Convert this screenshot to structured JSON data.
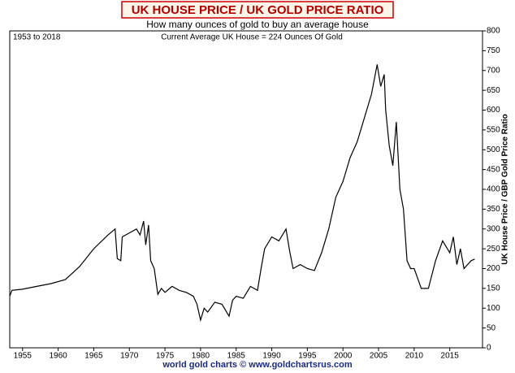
{
  "chart_data": {
    "type": "line",
    "title": "UK HOUSE PRICE / UK GOLD PRICE RATIO",
    "subtitle": "How many ounces of gold to buy an average house",
    "annotations": [
      "1953 to 2018",
      "Current Average UK House = 224 Ounces Of Gold"
    ],
    "y_label": "UK House Price / GBP Gold Price Ratio",
    "source": "world gold charts © www.goldchartsrus.com",
    "color": "#000000",
    "x": [
      1953.2,
      1953.5,
      1955,
      1957,
      1959,
      1961,
      1963,
      1965,
      1967,
      1968.0,
      1968.3,
      1968.8,
      1969,
      1970,
      1971,
      1971.5,
      1972,
      1972.3,
      1972.7,
      1973,
      1973.5,
      1974,
      1974.5,
      1975,
      1976,
      1977,
      1978,
      1979,
      1979.5,
      1980,
      1980.5,
      1981,
      1982,
      1983,
      1984,
      1984.5,
      1985,
      1986,
      1987,
      1988,
      1988.5,
      1989,
      1990,
      1991,
      1992,
      1992.5,
      1993,
      1994,
      1995,
      1996,
      1997,
      1998,
      1999,
      2000,
      2001,
      2002,
      2003,
      2004,
      2004.8,
      2005.3,
      2005.8,
      2006,
      2006.5,
      2007,
      2007.5,
      2008,
      2008.5,
      2009,
      2009.5,
      2010,
      2011,
      2012,
      2013,
      2014,
      2015,
      2015.5,
      2016,
      2016.5,
      2017,
      2017.5,
      2018,
      2018.5
    ],
    "values": [
      130,
      145,
      148,
      155,
      162,
      172,
      205,
      250,
      285,
      300,
      225,
      220,
      280,
      290,
      300,
      285,
      320,
      260,
      310,
      220,
      200,
      135,
      150,
      140,
      155,
      145,
      140,
      130,
      110,
      70,
      100,
      90,
      115,
      110,
      80,
      120,
      130,
      125,
      155,
      145,
      200,
      250,
      280,
      270,
      300,
      245,
      200,
      210,
      200,
      195,
      240,
      300,
      380,
      420,
      480,
      520,
      580,
      640,
      715,
      660,
      690,
      600,
      510,
      460,
      570,
      400,
      350,
      220,
      200,
      200,
      150,
      150,
      220,
      270,
      240,
      280,
      210,
      250,
      200,
      210,
      220,
      224
    ],
    "xlim": [
      1953.2,
      2019.6
    ],
    "xticks": [
      1955,
      1960,
      1965,
      1970,
      1975,
      1980,
      1985,
      1990,
      1995,
      2000,
      2005,
      2010,
      2015
    ],
    "ylim": [
      0,
      800
    ],
    "yticks": [
      0,
      50,
      100,
      150,
      200,
      250,
      300,
      350,
      400,
      450,
      500,
      550,
      600,
      650,
      700,
      750,
      800
    ],
    "grid": false
  }
}
